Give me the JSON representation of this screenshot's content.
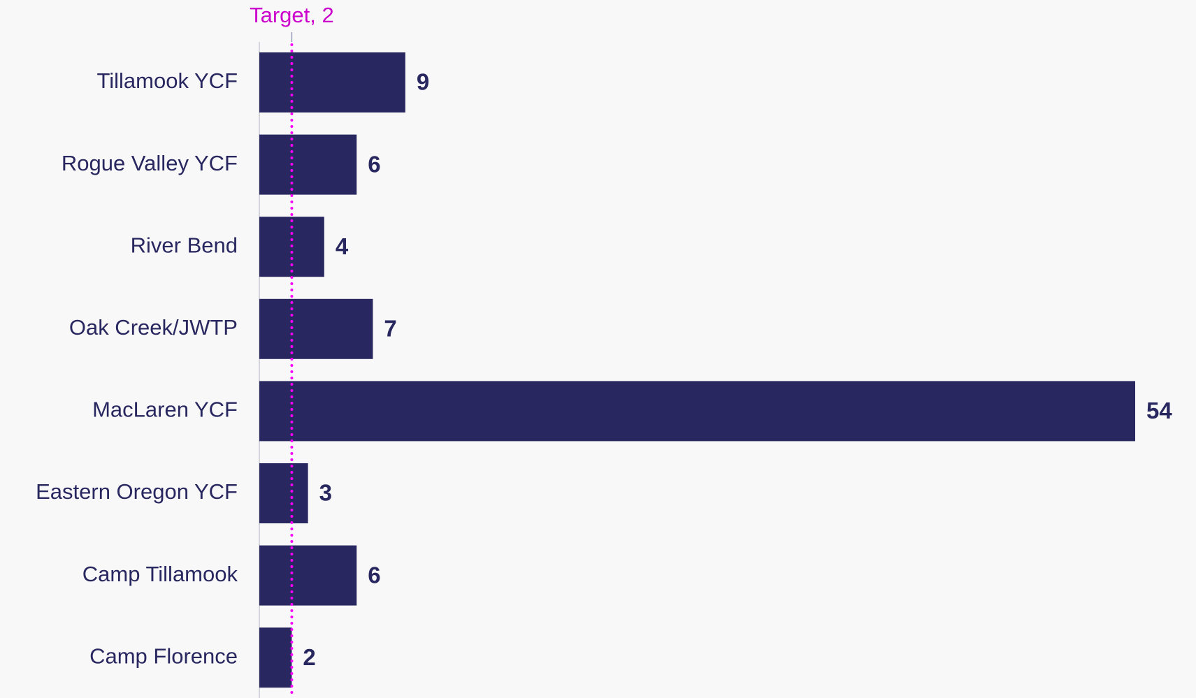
{
  "chart_data": {
    "type": "bar",
    "orientation": "horizontal",
    "categories": [
      "Tillamook YCF",
      "Rogue Valley YCF",
      "River Bend",
      "Oak Creek/JWTP",
      "MacLaren YCF",
      "Eastern Oregon YCF",
      "Camp Tillamook",
      "Camp Florence"
    ],
    "values": [
      9,
      6,
      4,
      7,
      54,
      3,
      6,
      2
    ],
    "color": "#29275f",
    "xlim": [
      0,
      54
    ],
    "target": {
      "label": "Target, 2",
      "value": 2,
      "color": "#ff00ff"
    }
  }
}
